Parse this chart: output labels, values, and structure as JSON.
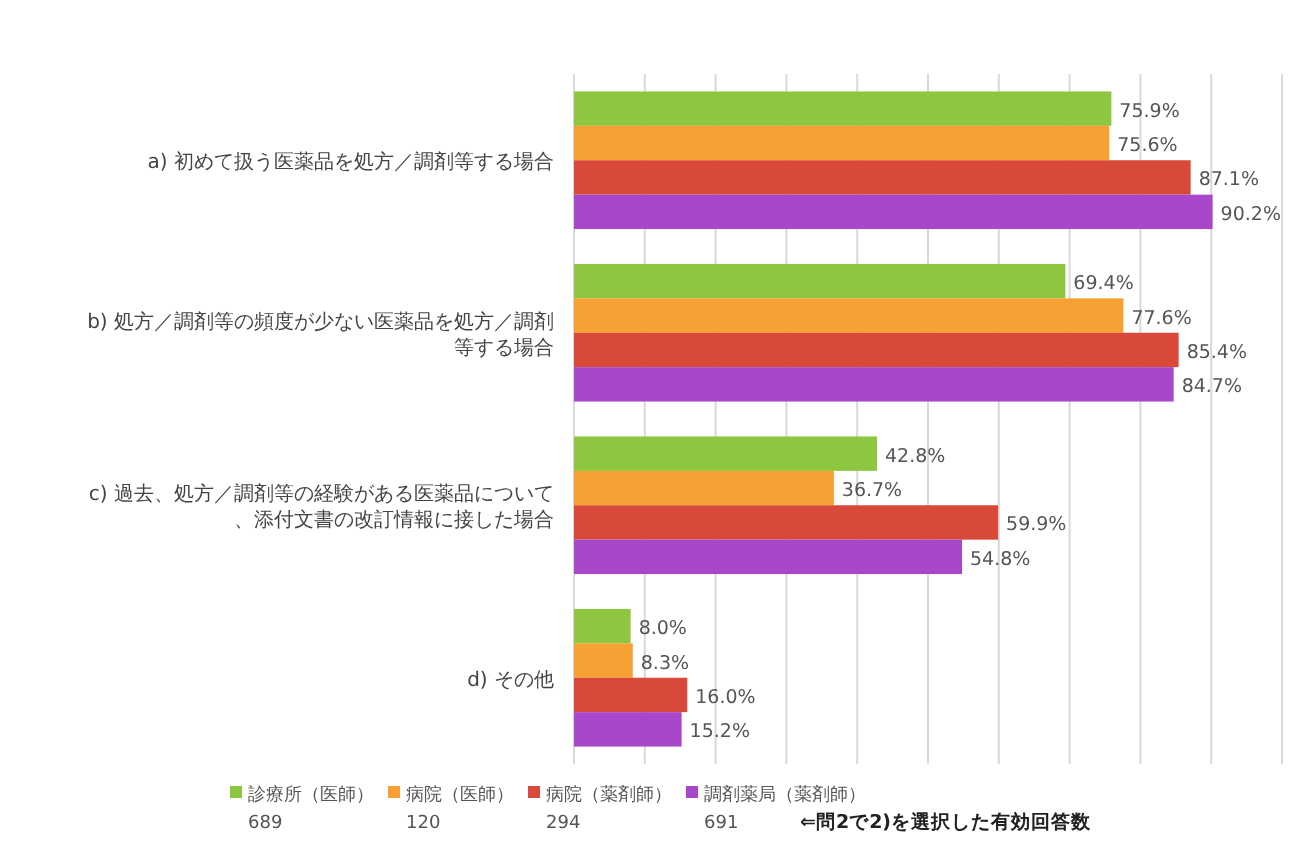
{
  "chart_data": {
    "type": "bar",
    "orientation": "horizontal",
    "categories": [
      "a) 初めて扱う医薬品を処方／調剤等する場合",
      "b) 処方／調剤等の頻度が少ない医薬品を処方／調剤等する場合",
      "c) 過去、処方／調剤等の経験がある医薬品について、添付文書の改訂情報に接した場合",
      "d) その他"
    ],
    "series": [
      {
        "name": "診療所（医師）\n689",
        "color": "#8dc63f",
        "values": [
          75.9,
          69.4,
          42.8,
          8.0
        ],
        "value_labels": [
          "75.9%",
          "69.4%",
          "42.8%",
          "8.0%"
        ]
      },
      {
        "name": "病院（医師）\n120",
        "color": "#f7a033",
        "values": [
          75.6,
          77.6,
          36.7,
          8.3
        ],
        "value_labels": [
          "75.6%",
          "77.6%",
          "36.7%",
          "8.3%"
        ]
      },
      {
        "name": "病院（薬剤師）\n294",
        "color": "#d9493a",
        "values": [
          87.1,
          85.4,
          59.9,
          16.0
        ],
        "value_labels": [
          "87.1%",
          "85.4%",
          "59.9%",
          "16.0%"
        ]
      },
      {
        "name": "調剤薬局（薬剤師）\n691",
        "color": "#a847c9",
        "values": [
          90.2,
          84.7,
          54.8,
          15.2
        ],
        "value_labels": [
          "90.2%",
          "84.7%",
          "54.8%",
          "15.2%"
        ]
      }
    ],
    "xlim": [
      0,
      100
    ],
    "xticks": [
      {
        "value": 0,
        "label": null
      },
      {
        "value": 10,
        "label": null
      },
      {
        "value": 20,
        "label": null
      },
      {
        "value": 30,
        "label": null
      },
      {
        "value": 40,
        "label": null
      },
      {
        "value": 50,
        "label": null
      },
      {
        "value": 60,
        "label": null
      },
      {
        "value": 70,
        "label": null
      },
      {
        "value": 80,
        "label": null
      },
      {
        "value": 90,
        "label": null
      },
      {
        "value": 100,
        "label": null
      }
    ],
    "grid": "x",
    "legend": "bottom",
    "tick_labels": "y",
    "annotations": [
      "⇐問2で2)を選択した有効回答数"
    ]
  }
}
